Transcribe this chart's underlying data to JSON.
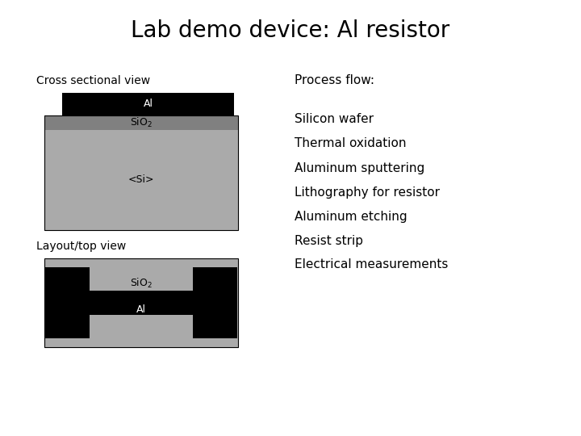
{
  "title": "Lab demo device: Al resistor",
  "title_fontsize": 20,
  "bg_color": "#ffffff",
  "cross_section_label": "Cross sectional view",
  "layout_label": "Layout/top view",
  "process_flow_label": "Process flow:",
  "process_steps": [
    "Silicon wafer",
    "Thermal oxidation",
    "Aluminum sputtering",
    "Lithography for resistor",
    "Aluminum etching",
    "Resist strip",
    "Electrical measurements"
  ],
  "color_black": "#000000",
  "color_dark_gray": "#808080",
  "color_light_gray": "#aaaaaa",
  "color_white": "#ffffff",
  "label_fontsize": 9,
  "process_fontsize": 11,
  "section_label_fontsize": 10
}
